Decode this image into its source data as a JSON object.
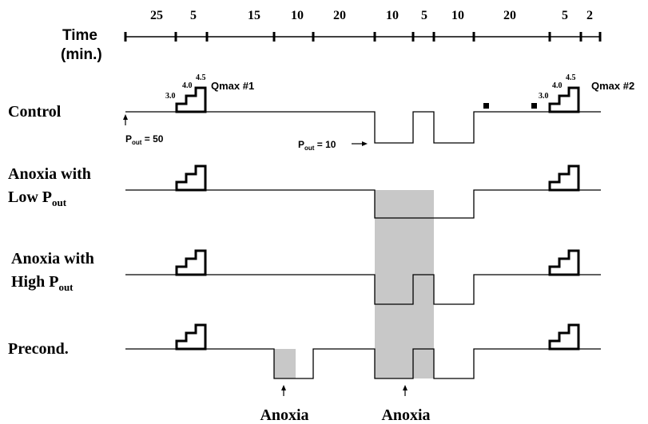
{
  "time_axis": {
    "label_line1": "Time",
    "label_line2": "(min.)",
    "segments": [
      "25",
      "5",
      "15",
      "10",
      "20",
      "10",
      "5",
      "10",
      "20",
      "5",
      "2"
    ]
  },
  "rows": {
    "control": {
      "label": "Control"
    },
    "anoxia_low": {
      "label_line1": "Anoxia with",
      "label_line2_main": "Low P",
      "label_line2_sub": "out"
    },
    "anoxia_high": {
      "label_line1": "Anoxia with",
      "label_line2_main": "High P",
      "label_line2_sub": "out"
    },
    "precond": {
      "label": "Precond."
    }
  },
  "qmax": {
    "first": "Qmax #1",
    "second": "Qmax #2",
    "step_labels": [
      "3.0",
      "4.0",
      "4.5"
    ]
  },
  "pressure": {
    "initial": {
      "main": "P",
      "sub": "out",
      "value": " = 50"
    },
    "low": {
      "main": "P",
      "sub": "out",
      "value": " = 10"
    }
  },
  "anoxia_labels": [
    "Anoxia",
    "Anoxia"
  ],
  "colors": {
    "shade": "#c8c8c8",
    "line": "#000000"
  }
}
